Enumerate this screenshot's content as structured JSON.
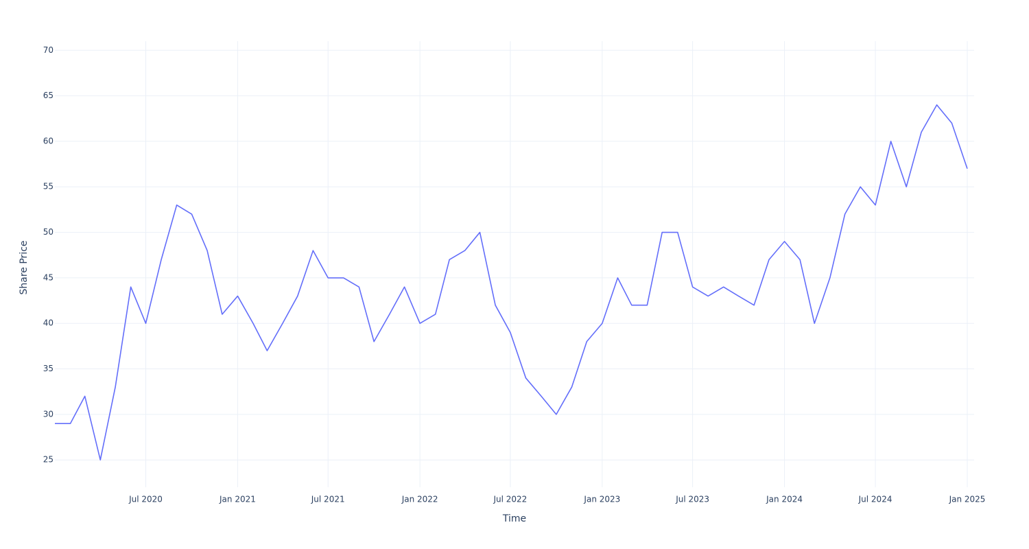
{
  "chart_data": {
    "type": "line",
    "x_label": "Time",
    "y_label": "Share Price",
    "x": [
      "2020-01",
      "2020-02",
      "2020-03",
      "2020-04",
      "2020-05",
      "2020-06",
      "2020-07",
      "2020-08",
      "2020-09",
      "2020-10",
      "2020-11",
      "2020-12",
      "2021-01",
      "2021-02",
      "2021-03",
      "2021-04",
      "2021-05",
      "2021-06",
      "2021-07",
      "2021-08",
      "2021-09",
      "2021-10",
      "2021-11",
      "2021-12",
      "2022-01",
      "2022-02",
      "2022-03",
      "2022-04",
      "2022-05",
      "2022-06",
      "2022-07",
      "2022-08",
      "2022-09",
      "2022-10",
      "2022-11",
      "2022-12",
      "2023-01",
      "2023-02",
      "2023-03",
      "2023-04",
      "2023-05",
      "2023-06",
      "2023-07",
      "2023-08",
      "2023-09",
      "2023-10",
      "2023-11",
      "2023-12",
      "2024-01",
      "2024-02",
      "2024-03",
      "2024-04",
      "2024-05",
      "2024-06",
      "2024-07",
      "2024-08",
      "2024-09",
      "2024-10",
      "2024-11",
      "2024-12",
      "2025-01"
    ],
    "series": [
      {
        "color": "#636efa",
        "values": [
          29,
          29,
          32,
          25,
          33,
          44,
          40,
          47,
          53,
          52,
          48,
          41,
          43,
          40,
          37,
          40,
          43,
          48,
          45,
          45,
          44,
          38,
          41,
          44,
          40,
          41,
          47,
          48,
          50,
          42,
          39,
          34,
          32,
          30,
          33,
          38,
          40,
          45,
          42,
          42,
          50,
          50,
          44,
          43,
          44,
          43,
          42,
          47,
          49,
          47,
          40,
          45,
          52,
          55,
          53,
          60,
          55,
          61,
          64,
          62,
          57
        ]
      }
    ],
    "xlim": [
      "2020-01",
      "2025-01"
    ],
    "xticks": [
      {
        "value": "2020-07",
        "label": "Jul 2020"
      },
      {
        "value": "2021-01",
        "label": "Jan 2021"
      },
      {
        "value": "2021-07",
        "label": "Jul 2021"
      },
      {
        "value": "2022-01",
        "label": "Jan 2022"
      },
      {
        "value": "2022-07",
        "label": "Jul 2022"
      },
      {
        "value": "2023-01",
        "label": "Jan 2023"
      },
      {
        "value": "2023-07",
        "label": "Jul 2023"
      },
      {
        "value": "2024-01",
        "label": "Jan 2024"
      },
      {
        "value": "2024-07",
        "label": "Jul 2024"
      },
      {
        "value": "2025-01",
        "label": "Jan 2025"
      }
    ],
    "ylim": [
      22,
      71
    ],
    "yticks": [
      25,
      30,
      35,
      40,
      45,
      50,
      55,
      60,
      65,
      70
    ],
    "grid": true
  }
}
